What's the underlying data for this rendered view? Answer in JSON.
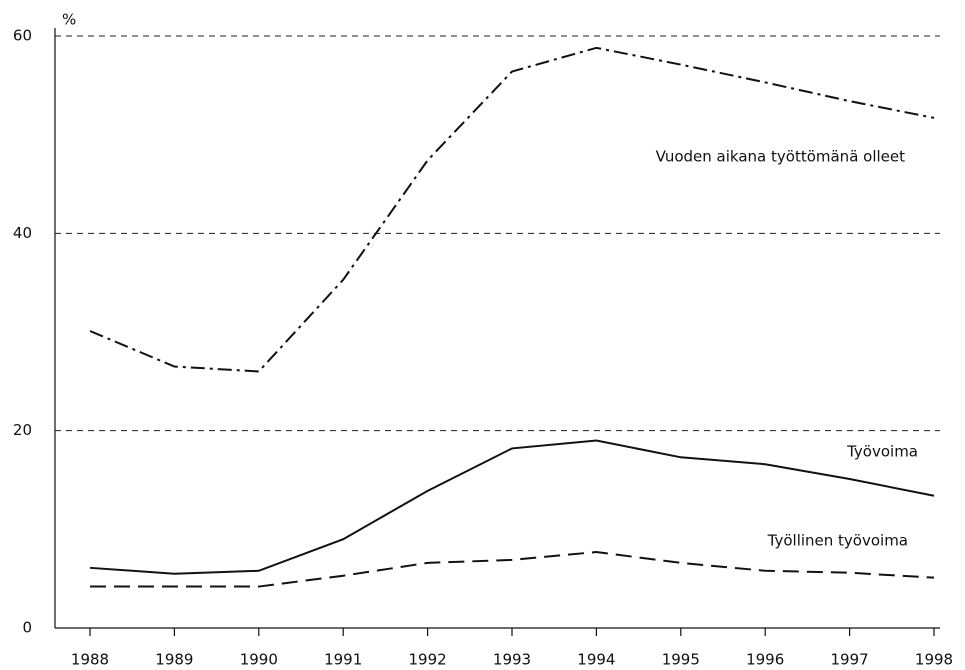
{
  "chart_data": {
    "type": "line",
    "y_label": "%",
    "categories": [
      "1988",
      "1989",
      "1990",
      "1991",
      "1992",
      "1993",
      "1994",
      "1995",
      "1996",
      "1997",
      "1998"
    ],
    "series": [
      {
        "name": "Vuoden aikana työttömänä olleet",
        "color": "#111111",
        "dash": "dashdot",
        "values": [
          30.1,
          26.5,
          26.0,
          35.3,
          47.4,
          56.4,
          58.8,
          57.1,
          55.3,
          53.4,
          51.7
        ]
      },
      {
        "name": "Työvoima",
        "color": "#111111",
        "dash": "solid",
        "values": [
          6.1,
          5.5,
          5.8,
          9.0,
          13.9,
          18.2,
          19.0,
          17.3,
          16.6,
          15.1,
          13.4
        ]
      },
      {
        "name": "Työllinen työvoima",
        "color": "#111111",
        "dash": "dashed",
        "values": [
          4.2,
          4.2,
          4.2,
          5.3,
          6.6,
          6.9,
          7.7,
          6.6,
          5.8,
          5.6,
          5.1
        ]
      }
    ],
    "ylim": [
      0,
      60
    ],
    "yticks": [
      0,
      20,
      40,
      60
    ],
    "grid": true
  }
}
